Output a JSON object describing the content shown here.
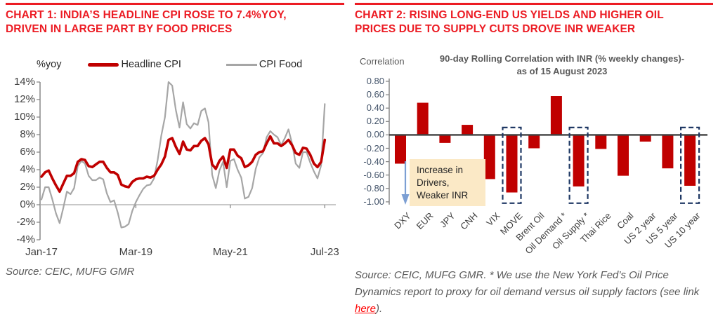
{
  "left_panel": {
    "title_line1": "CHART 1: INDIA’S HEADLINE CPI ROSE TO 7.4%YOY,",
    "title_line2": "DRIVEN IN LARGE PART BY FOOD PRICES",
    "axis_unit_label": "%yoy",
    "legend": [
      {
        "label": "Headline CPI",
        "color": "#C00000"
      },
      {
        "label": "CPI Food",
        "color": "#A6A6A6"
      }
    ],
    "source": "Source: CEIC, MUFG GMR"
  },
  "right_panel": {
    "title_line1": "CHART 2: RISING LONG-END US YIELDS AND HIGHER OIL",
    "title_line2": "PRICES DUE TO SUPPLY CUTS DROVE INR WEAKER",
    "axis_label": "Correlation",
    "chart_title_line1": "90-day Rolling Correlation with INR (% weekly changes)-",
    "chart_title_line2": "as of 15 August 2023",
    "annotation_lines": [
      "Increase in",
      "Drivers,",
      "Weaker INR"
    ],
    "source_prefix": "Source: CEIC, MUFG GMR.  * We use the New York Fed’s Oil Price Dynamics report to proxy for oil demand versus oil supply factors (see link ",
    "source_link": "here",
    "source_suffix": ")."
  },
  "colors": {
    "heading_red": "#EC1C24",
    "series_red": "#C00000",
    "series_gray": "#A6A6A6",
    "axis_text": "#404040",
    "tick_text_right": "#44546A",
    "zero_line_right": "#404040",
    "dashed_box_navy": "#1F3864",
    "annotation_bg": "#FBE9C6",
    "arrow_blue": "#7C9FD3",
    "source_gray": "#595959",
    "link_red": "#FF0000"
  },
  "chart_data": [
    {
      "type": "line",
      "title": "India Headline CPI vs CPI Food",
      "ylabel": "%yoy",
      "ylim": [
        -4,
        14
      ],
      "ytick_values": [
        14,
        12,
        10,
        8,
        6,
        4,
        2,
        0,
        -2,
        -4
      ],
      "ytick_labels": [
        "14%",
        "12%",
        "10%",
        "8%",
        "6%",
        "4%",
        "2%",
        "0%",
        "-2%",
        "-4%"
      ],
      "x_months_start": "Jan-17",
      "x_tick_labels": [
        {
          "label": "Jan-17",
          "index": 0
        },
        {
          "label": "Mar-19",
          "index": 26
        },
        {
          "label": "May-21",
          "index": 52
        },
        {
          "label": "Jul-23",
          "index": 78
        }
      ],
      "grid": false,
      "legend_position": "top",
      "series": [
        {
          "name": "Headline CPI",
          "color": "#C00000",
          "stroke_width": 3.6,
          "values": [
            3.2,
            3.7,
            3.9,
            3.0,
            2.2,
            1.5,
            2.4,
            3.3,
            3.3,
            3.6,
            4.9,
            5.2,
            5.1,
            4.4,
            4.3,
            4.6,
            4.9,
            4.9,
            4.2,
            3.7,
            3.7,
            3.4,
            2.3,
            2.1,
            2.0,
            2.6,
            2.9,
            3.0,
            3.0,
            3.2,
            3.1,
            3.3,
            4.0,
            4.6,
            5.5,
            7.4,
            7.6,
            6.6,
            5.8,
            7.2,
            6.3,
            6.2,
            6.7,
            6.7,
            7.3,
            7.6,
            6.9,
            4.6,
            4.1,
            5.0,
            5.5,
            4.2,
            6.3,
            6.3,
            5.6,
            5.3,
            4.3,
            4.5,
            4.9,
            5.7,
            6.0,
            6.1,
            7.0,
            7.8,
            7.0,
            7.0,
            6.7,
            7.0,
            7.4,
            6.8,
            5.9,
            5.7,
            6.5,
            6.4,
            5.7,
            4.7,
            4.3,
            4.9,
            7.4
          ]
        },
        {
          "name": "CPI Food",
          "color": "#A6A6A6",
          "stroke_width": 2.2,
          "values": [
            0.6,
            2.0,
            2.0,
            0.6,
            -1.0,
            -2.1,
            -0.4,
            1.5,
            1.2,
            1.9,
            4.4,
            5.0,
            4.7,
            3.3,
            2.8,
            2.8,
            3.1,
            2.9,
            1.3,
            0.3,
            0.5,
            -0.9,
            -2.6,
            -2.5,
            -2.2,
            -0.7,
            0.3,
            1.1,
            1.8,
            2.2,
            2.3,
            3.0,
            5.1,
            7.9,
            10.0,
            14.0,
            13.6,
            10.8,
            8.8,
            11.7,
            9.2,
            8.7,
            9.3,
            9.1,
            10.7,
            11.0,
            9.4,
            3.4,
            1.9,
            3.9,
            4.9,
            2.0,
            5.0,
            5.2,
            4.0,
            3.1,
            0.7,
            0.9,
            1.9,
            4.1,
            5.4,
            5.9,
            7.7,
            8.4,
            8.0,
            7.7,
            6.8,
            7.6,
            8.6,
            7.0,
            4.7,
            4.2,
            6.0,
            6.0,
            4.8,
            3.8,
            3.0,
            4.5,
            11.5
          ]
        }
      ]
    },
    {
      "type": "bar",
      "title": "90-day Rolling Correlation with INR (% weekly changes)- as of 15 August 2023",
      "ylabel": "Correlation",
      "ylim": [
        -1.0,
        0.8
      ],
      "ytick_values": [
        0.8,
        0.6,
        0.4,
        0.2,
        0.0,
        -0.2,
        -0.4,
        -0.6,
        -0.8,
        -1.0
      ],
      "ytick_labels": [
        "0.80",
        "0.60",
        "0.40",
        "0.20",
        "0.00",
        "-0.20",
        "-0.40",
        "-0.60",
        "-0.80",
        "-1.00"
      ],
      "categories": [
        "DXY",
        "EUR",
        "JPY",
        "CNH",
        "VIX",
        "MOVE",
        "Brent Oil",
        "Oil Demand *",
        "Oil Supply *",
        "Thai Rice",
        "Coal",
        "US 2 year",
        "US 5 year",
        "US 10 year"
      ],
      "values": [
        -0.43,
        0.48,
        -0.12,
        0.15,
        -0.66,
        -0.86,
        -0.2,
        0.58,
        -0.77,
        -0.21,
        -0.61,
        -0.1,
        -0.5,
        -0.76
      ],
      "bar_color": "#C00000",
      "highlighted_categories": [
        "MOVE",
        "Oil Supply *",
        "US 10 year"
      ],
      "annotation": "Increase in Drivers, Weaker INR",
      "grid": false
    }
  ]
}
